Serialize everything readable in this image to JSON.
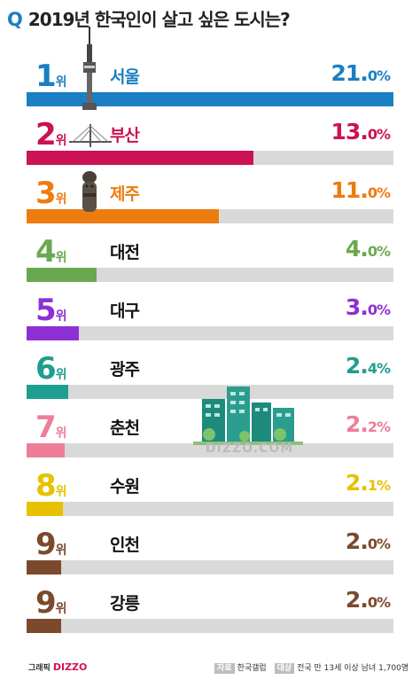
{
  "header": {
    "q_mark": "Q",
    "title": "2019년 한국인이 살고 싶은 도시는?"
  },
  "rank_suffix": "위",
  "rows": [
    {
      "rank": "1",
      "city": "서울",
      "value_int": "21.",
      "value_dec": "0%",
      "color": "#1b7fc3"
    },
    {
      "rank": "2",
      "city": "부산",
      "value_int": "13.",
      "value_dec": "0%",
      "color": "#cc1155"
    },
    {
      "rank": "3",
      "city": "제주",
      "value_int": "11.",
      "value_dec": "0%",
      "color": "#ee7b10"
    },
    {
      "rank": "4",
      "city": "대전",
      "value_int": "4.",
      "value_dec": "0%",
      "color": "#6aa84f"
    },
    {
      "rank": "5",
      "city": "대구",
      "value_int": "3.",
      "value_dec": "0%",
      "color": "#8e2fd4"
    },
    {
      "rank": "6",
      "city": "광주",
      "value_int": "2.",
      "value_dec": "4%",
      "color": "#1e9e8e"
    },
    {
      "rank": "7",
      "city": "춘천",
      "value_int": "2.",
      "value_dec": "2%",
      "color": "#ee7d9a"
    },
    {
      "rank": "8",
      "city": "수원",
      "value_int": "2.",
      "value_dec": "1%",
      "color": "#e8c100"
    },
    {
      "rank": "9",
      "city": "인천",
      "value_int": "2.",
      "value_dec": "0%",
      "color": "#7b4a2d"
    },
    {
      "rank": "9",
      "city": "강릉",
      "value_int": "2.",
      "value_dec": "0%",
      "color": "#7b4a2d"
    }
  ],
  "chart_data": {
    "type": "bar",
    "orientation": "horizontal",
    "title": "2019년 한국인이 살고 싶은 도시는?",
    "categories": [
      "서울",
      "부산",
      "제주",
      "대전",
      "대구",
      "광주",
      "춘천",
      "수원",
      "인천",
      "강릉"
    ],
    "values": [
      21.0,
      13.0,
      11.0,
      4.0,
      3.0,
      2.4,
      2.2,
      2.1,
      2.0,
      2.0
    ],
    "unit": "%",
    "xlim": [
      0,
      21.0
    ],
    "grid": false,
    "legend": "none"
  },
  "watermark": "DIZZO.COM",
  "footer": {
    "brand_label": "그래픽",
    "brand_logo": "DIZZO",
    "source_tag": "자료",
    "source": "한국갤럽",
    "target_tag": "대상",
    "target": "전국 만 13세 이상 남녀 1,700명"
  }
}
